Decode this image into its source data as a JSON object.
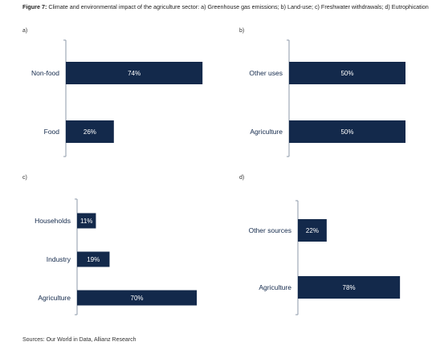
{
  "caption": {
    "label": "Figure 7:",
    "text": "Climate and environmental impact of the agriculture sector: a) Greenhouse gas emissions; b) Land-use; c) Freshwater withdrawals; d) Eutrophication"
  },
  "source": "Sources: Our World in Data, Allianz Research",
  "colors": {
    "bar": "#13294b",
    "axis": "#8c9aa8",
    "label": "#13294b"
  },
  "chart_data": [
    {
      "type": "bar",
      "orientation": "horizontal",
      "panel": "a)",
      "categories": [
        "Non-food",
        "Food"
      ],
      "values": [
        74,
        26
      ],
      "value_labels": [
        "74%",
        "26%"
      ],
      "xlim": [
        0,
        100
      ]
    },
    {
      "type": "bar",
      "orientation": "horizontal",
      "panel": "b)",
      "categories": [
        "Other uses",
        "Agriculture"
      ],
      "values": [
        50,
        50
      ],
      "value_labels": [
        "50%",
        "50%"
      ],
      "xlim": [
        0,
        100
      ]
    },
    {
      "type": "bar",
      "orientation": "horizontal",
      "panel": "c)",
      "categories": [
        "Households",
        "Industry",
        "Agriculture"
      ],
      "values": [
        11,
        19,
        70
      ],
      "value_labels": [
        "11%",
        "19%",
        "70%"
      ],
      "xlim": [
        0,
        100
      ]
    },
    {
      "type": "bar",
      "orientation": "horizontal",
      "panel": "d)",
      "categories": [
        "Other sources",
        "Agriculture"
      ],
      "values": [
        22,
        78
      ],
      "value_labels": [
        "22%",
        "78%"
      ],
      "xlim": [
        0,
        100
      ]
    }
  ]
}
